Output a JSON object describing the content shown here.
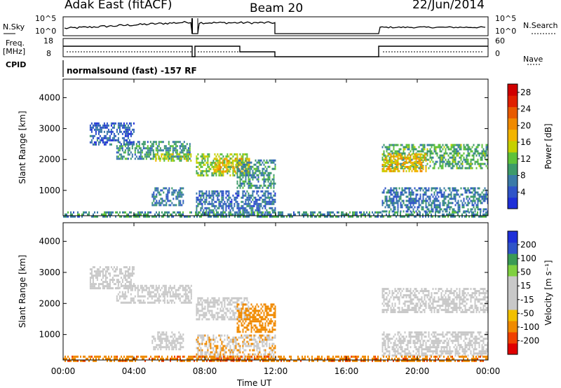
{
  "header": {
    "station": "Adak East (fitACF)",
    "beam": "Beam 20",
    "date": "22/Jun/2014"
  },
  "strip_labels": {
    "nsky": "N.Sky",
    "nsearch": "N.Search",
    "freq": "Freq.",
    "freq_unit": "[MHz]",
    "nave": "Nave",
    "cpid": "CPID",
    "cpid_text": "normalsound (fast) -157 RF",
    "noise_ticks_left": [
      "10^5",
      "10^0"
    ],
    "noise_ticks_right": [
      "10^5",
      "10^0"
    ],
    "freq_ticks": [
      "18",
      "8"
    ],
    "nave_ticks": [
      "60",
      "0"
    ]
  },
  "colors": {
    "power": [
      "#1e2fd8",
      "#2f54c8",
      "#3a7aa8",
      "#3d9a6a",
      "#5fc23a",
      "#c6d000",
      "#f2b400",
      "#f08a00",
      "#e85a00",
      "#e02000",
      "#d00000"
    ],
    "velocity": [
      "#e00000",
      "#f04000",
      "#f08a00",
      "#f2c000",
      "#c8c8c8",
      "#c8c8c8",
      "#7fd040",
      "#3a9a55",
      "#3a7aa8",
      "#2f54c8",
      "#1e2fd8"
    ]
  },
  "chart_data": [
    {
      "type": "heatmap",
      "name": "power",
      "ylabel": "Slant Range [km]",
      "ylim": [
        180,
        4600
      ],
      "yticks": [
        "1000",
        "2000",
        "3000",
        "4000"
      ],
      "xlabel": "Time UT",
      "xlim": [
        0,
        24
      ],
      "xticks": [
        "00:00",
        "04:00",
        "08:00",
        "12:00",
        "16:00",
        "20:00",
        "00:00"
      ],
      "colorbar_label": "Power [dB]",
      "colorbar_ticks": [
        "4",
        "8",
        "12",
        "16",
        "20",
        "24",
        "28"
      ],
      "colorbar_range": [
        0,
        30
      ],
      "bands": [
        {
          "t": [
            3.0,
            7.2
          ],
          "r": [
            2000,
            2600
          ],
          "v": 8
        },
        {
          "t": [
            5.2,
            7.2
          ],
          "r": [
            1950,
            2200
          ],
          "v": 14
        },
        {
          "t": [
            1.5,
            4.0
          ],
          "r": [
            2500,
            3200
          ],
          "v": 4
        },
        {
          "t": [
            5.0,
            6.8
          ],
          "r": [
            500,
            1100
          ],
          "v": 6
        },
        {
          "t": [
            7.5,
            10.5
          ],
          "r": [
            1500,
            2200
          ],
          "v": 12
        },
        {
          "t": [
            8.5,
            10.5
          ],
          "r": [
            1600,
            2050
          ],
          "v": 18
        },
        {
          "t": [
            9.8,
            12.0
          ],
          "r": [
            1100,
            2000
          ],
          "v": 8
        },
        {
          "t": [
            7.5,
            12.0
          ],
          "r": [
            200,
            1000
          ],
          "v": 5
        },
        {
          "t": [
            18.0,
            24.0
          ],
          "r": [
            1700,
            2500
          ],
          "v": 10
        },
        {
          "t": [
            18.0,
            20.5
          ],
          "r": [
            1600,
            2200
          ],
          "v": 18
        },
        {
          "t": [
            18.0,
            24.0
          ],
          "r": [
            300,
            1100
          ],
          "v": 6
        },
        {
          "t": [
            0.0,
            24.0
          ],
          "r": [
            180,
            320
          ],
          "v": 8
        }
      ]
    },
    {
      "type": "heatmap",
      "name": "velocity",
      "ylabel": "Slant Range [km]",
      "ylim": [
        180,
        4600
      ],
      "yticks": [
        "1000",
        "2000",
        "3000",
        "4000"
      ],
      "xlabel": "Time UT",
      "xlim": [
        0,
        24
      ],
      "xticks": [
        "00:00",
        "04:00",
        "08:00",
        "12:00",
        "16:00",
        "20:00",
        "00:00"
      ],
      "colorbar_label": "Velocity [m s⁻¹]",
      "colorbar_ticks": [
        "200",
        "100",
        "50",
        "15",
        "-15",
        "-50",
        "-100",
        "-200"
      ],
      "bands": [
        {
          "t": [
            3.0,
            7.2
          ],
          "r": [
            2000,
            2600
          ],
          "v": 0
        },
        {
          "t": [
            1.5,
            4.0
          ],
          "r": [
            2500,
            3200
          ],
          "v": 0
        },
        {
          "t": [
            5.0,
            6.8
          ],
          "r": [
            500,
            1100
          ],
          "v": 0
        },
        {
          "t": [
            7.5,
            10.5
          ],
          "r": [
            1500,
            2200
          ],
          "v": 0
        },
        {
          "t": [
            9.8,
            12.0
          ],
          "r": [
            1100,
            2000
          ],
          "v": -30
        },
        {
          "t": [
            7.5,
            12.0
          ],
          "r": [
            200,
            1000
          ],
          "v": -10
        },
        {
          "t": [
            8.5,
            10.0
          ],
          "r": [
            180,
            260
          ],
          "v": -60
        },
        {
          "t": [
            18.0,
            24.0
          ],
          "r": [
            1700,
            2500
          ],
          "v": 0
        },
        {
          "t": [
            18.0,
            24.0
          ],
          "r": [
            300,
            1100
          ],
          "v": 0
        },
        {
          "t": [
            0.0,
            24.0
          ],
          "r": [
            180,
            320
          ],
          "v": -40
        }
      ]
    }
  ]
}
